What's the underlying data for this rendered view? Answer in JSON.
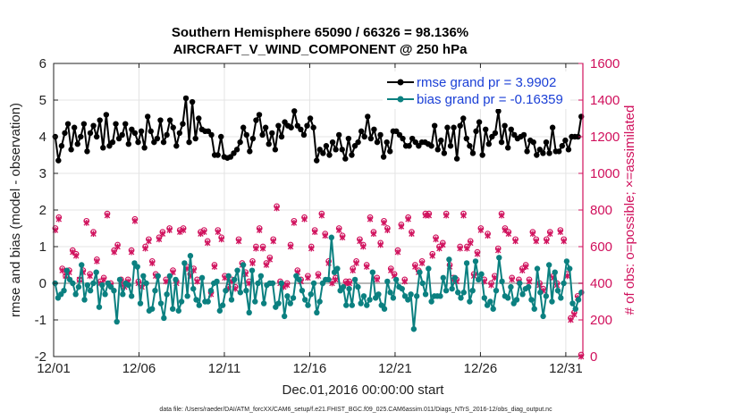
{
  "chart_data": {
    "type": "line",
    "title": "Southern Hemisphere 65090 / 66326 = 98.136%",
    "subtitle": "AIRCRAFT_V_WIND_COMPONENT @ 250 hPa",
    "xlabel": "Dec.01,2016 00:00:00 start",
    "ylabel": "rmse and bias (model - observation)",
    "ylabel_right": "# of obs: o=possible; ×=assimilated",
    "ylim": [
      -2,
      6
    ],
    "ylim_right": [
      0,
      1600
    ],
    "xlim": [
      0,
      31
    ],
    "x_ticks": [
      0,
      5,
      10,
      15,
      20,
      25,
      30
    ],
    "x_tick_labels": [
      "12/01",
      "12/06",
      "12/11",
      "12/16",
      "12/21",
      "12/26",
      "12/31"
    ],
    "y_ticks": [
      -2,
      -1,
      0,
      1,
      2,
      3,
      4,
      5,
      6
    ],
    "y_ticks_right": [
      0,
      200,
      400,
      600,
      800,
      1000,
      1200,
      1400,
      1600
    ],
    "grid": true,
    "legend_position": "top-right",
    "colors": {
      "rmse": "#000000",
      "bias": "#0b8080",
      "obs": "#d0105c",
      "zero_line": "#b8b8b8",
      "legend_text": "#1a3fd6"
    },
    "series": [
      {
        "name": "rmse grand pr = 3.9902",
        "axis": "left",
        "values": [
          4.0,
          3.35,
          3.75,
          4.1,
          4.35,
          3.65,
          4.25,
          3.8,
          4.0,
          4.35,
          3.6,
          4.1,
          4.3,
          4.0,
          4.45,
          3.7,
          4.6,
          3.75,
          3.85,
          4.35,
          3.95,
          4.05,
          4.35,
          3.8,
          4.2,
          4.1,
          3.85,
          4.15,
          3.7,
          4.55,
          4.15,
          3.85,
          3.95,
          4.45,
          3.85,
          4.05,
          4.45,
          4.25,
          3.75,
          4.1,
          4.35,
          5.05,
          3.85,
          4.95,
          3.95,
          4.5,
          4.2,
          4.15,
          4.15,
          4.05,
          3.5,
          3.5,
          4.0,
          3.45,
          3.42,
          3.45,
          3.55,
          3.65,
          3.85,
          4.25,
          4.05,
          3.6,
          3.95,
          4.45,
          4.6,
          4.05,
          4.25,
          3.8,
          4.1,
          3.65,
          4.3,
          4.0,
          4.4,
          4.3,
          4.25,
          4.7,
          4.3,
          4.2,
          4.05,
          4.3,
          4.5,
          4.25,
          3.35,
          3.65,
          3.55,
          3.75,
          3.5,
          3.85,
          3.65,
          4.05,
          3.65,
          3.4,
          3.95,
          3.5,
          3.75,
          3.85,
          4.15,
          4.0,
          4.55,
          3.95,
          4.2,
          3.85,
          4.05,
          3.45,
          3.85,
          3.6,
          4.15,
          4.15,
          4.05,
          3.95,
          3.75,
          3.75,
          3.95,
          3.85,
          3.75,
          3.85,
          3.85,
          3.8,
          3.75,
          4.3,
          3.65,
          3.9,
          3.55,
          4.25,
          3.75,
          4.25,
          3.4,
          4.3,
          4.5,
          3.95,
          3.75,
          3.55,
          4.15,
          4.4,
          3.5,
          4.2,
          3.8,
          4.0,
          4.1,
          4.7,
          3.85,
          4.3,
          3.7,
          4.2,
          4.05,
          3.95,
          4.0,
          4.05,
          3.6,
          3.9,
          3.85,
          3.5,
          3.65,
          3.55,
          3.85,
          3.55,
          4.25,
          3.6,
          3.6,
          3.75,
          3.9,
          3.65,
          4.0,
          4.0,
          4.0,
          4.55
        ]
      },
      {
        "name": "bias grand pr = -0.16359",
        "axis": "left",
        "values": [
          0.0,
          -0.4,
          -0.3,
          -0.2,
          0.35,
          0.1,
          0.0,
          -0.3,
          -0.1,
          0.5,
          -0.45,
          -0.05,
          -0.2,
          0.0,
          0.3,
          -0.65,
          -0.05,
          -0.3,
          0.0,
          -0.1,
          -0.2,
          -1.05,
          0.1,
          -0.3,
          0.0,
          -0.05,
          -0.35,
          0.55,
          0.45,
          -0.55,
          0.2,
          0.0,
          -0.75,
          -0.7,
          -0.2,
          0.2,
          -0.55,
          -0.95,
          -0.3,
          0.2,
          -0.7,
          0.1,
          -0.75,
          -0.5,
          0.55,
          -0.35,
          0.75,
          -0.15,
          -0.45,
          -0.6,
          0.15,
          -0.5,
          -0.5,
          -0.2,
          0.0,
          0.05,
          -0.75,
          -0.6,
          -0.2,
          0.2,
          -0.45,
          0.1,
          0.35,
          -0.25,
          0.5,
          -0.2,
          -0.8,
          0.35,
          -0.5,
          0.0,
          0.2,
          -0.55,
          -0.05,
          0.0,
          0.0,
          -0.65,
          -0.55,
          0.0,
          -0.9,
          -0.35,
          -0.55,
          -0.4,
          0.2,
          0.1,
          -0.2,
          -0.45,
          -0.6,
          -0.3,
          0.0,
          -0.8,
          -0.5,
          0.0,
          0.1,
          0.1,
          1.25,
          0.3,
          0.4,
          -0.2,
          -0.1,
          -0.6,
          -0.15,
          -0.6,
          0.1,
          -0.1,
          -0.55,
          -0.35,
          -0.6,
          -0.45,
          0.3,
          -0.4,
          -0.3,
          -0.6,
          -0.7,
          0.05,
          -0.25,
          -0.4,
          0.1,
          -0.1,
          -0.15,
          -0.35,
          -0.45,
          -0.3,
          -1.25,
          -0.35,
          0.3,
          0.0,
          -0.3,
          0.4,
          -0.5,
          -0.35,
          -0.35,
          -0.35,
          0.15,
          -0.2,
          0.65,
          -0.15,
          0.15,
          -0.25,
          -0.4,
          -0.25,
          0.55,
          -0.5,
          -0.2,
          0.6,
          0.1,
          0.25,
          -0.4,
          -0.6,
          -0.5,
          -0.7,
          -0.2,
          0.7,
          0.05,
          -0.35,
          -0.4,
          -0.1,
          -0.55,
          -0.45,
          0.0,
          -0.3,
          -0.15,
          -0.1,
          -0.45,
          -0.7,
          0.4,
          -0.25,
          -0.9,
          -0.35,
          0.5,
          -0.5,
          0.3,
          -0.2,
          -0.4,
          0.0,
          0.6,
          0.4,
          -0.55,
          -0.7,
          -0.45,
          -0.25
        ]
      },
      {
        "name": "possible",
        "axis": "right",
        "marker": "o",
        "values": [
          700,
          760,
          480,
          440,
          470,
          580,
          560,
          420,
          470,
          740,
          450,
          680,
          530,
          410,
          430,
          780,
          400,
          580,
          610,
          420,
          390,
          420,
          580,
          750,
          410,
          390,
          600,
          640,
          520,
          450,
          650,
          680,
          420,
          700,
          470,
          410,
          690,
          700,
          490,
          450,
          480,
          420,
          680,
          690,
          630,
          350,
          500,
          690,
          650,
          440,
          380,
          420,
          380,
          640,
          510,
          460,
          410,
          520,
          600,
          700,
          600,
          510,
          540,
          640,
          820,
          410,
          390,
          400,
          610,
          740,
          470,
          420,
          760,
          440,
          600,
          690,
          450,
          780,
          670,
          520,
          410,
          430,
          700,
          660,
          410,
          410,
          480,
          520,
          640,
          610,
          500,
          760,
          680,
          430,
          620,
          740,
          700,
          480,
          450,
          580,
          720,
          420,
          760,
          680,
          500,
          470,
          520,
          780,
          780,
          560,
          650,
          600,
          620,
          780,
          500,
          430,
          420,
          600,
          780,
          600,
          630,
          450,
          570,
          700,
          420,
          670,
          400,
          440,
          590,
          780,
          700,
          680,
          430,
          640,
          420,
          480,
          500,
          420,
          680,
          640,
          400,
          370,
          640,
          680,
          440,
          400,
          690,
          640,
          450,
          210,
          240,
          330,
          10
        ]
      },
      {
        "name": "assimilated",
        "axis": "right",
        "marker": "x",
        "values": [
          690,
          750,
          470,
          440,
          460,
          570,
          550,
          420,
          460,
          730,
          440,
          670,
          520,
          400,
          420,
          770,
          390,
          570,
          600,
          410,
          380,
          410,
          570,
          740,
          400,
          380,
          590,
          630,
          510,
          440,
          640,
          670,
          410,
          690,
          460,
          400,
          680,
          690,
          480,
          440,
          470,
          410,
          670,
          680,
          620,
          340,
          490,
          680,
          640,
          430,
          370,
          410,
          370,
          630,
          500,
          450,
          400,
          510,
          590,
          690,
          590,
          500,
          530,
          630,
          810,
          400,
          380,
          390,
          600,
          730,
          460,
          410,
          750,
          430,
          590,
          680,
          440,
          770,
          660,
          510,
          400,
          420,
          690,
          650,
          400,
          400,
          470,
          510,
          630,
          600,
          490,
          750,
          670,
          420,
          610,
          730,
          690,
          470,
          440,
          570,
          710,
          410,
          750,
          670,
          490,
          460,
          510,
          770,
          770,
          550,
          640,
          590,
          610,
          770,
          490,
          420,
          410,
          590,
          770,
          590,
          620,
          440,
          560,
          690,
          410,
          660,
          390,
          430,
          580,
          770,
          690,
          670,
          420,
          630,
          410,
          470,
          490,
          410,
          670,
          630,
          390,
          360,
          630,
          670,
          430,
          390,
          680,
          630,
          440,
          200,
          230,
          320,
          0
        ]
      }
    ],
    "footnote": "data file: /Users/raeder/DAI/ATM_forcXX/CAM6_setup/f.e21.FHIST_BGC.f09_025.CAM6assim.011/Diags_NTrS_2016-12/obs_diag_output.nc"
  }
}
